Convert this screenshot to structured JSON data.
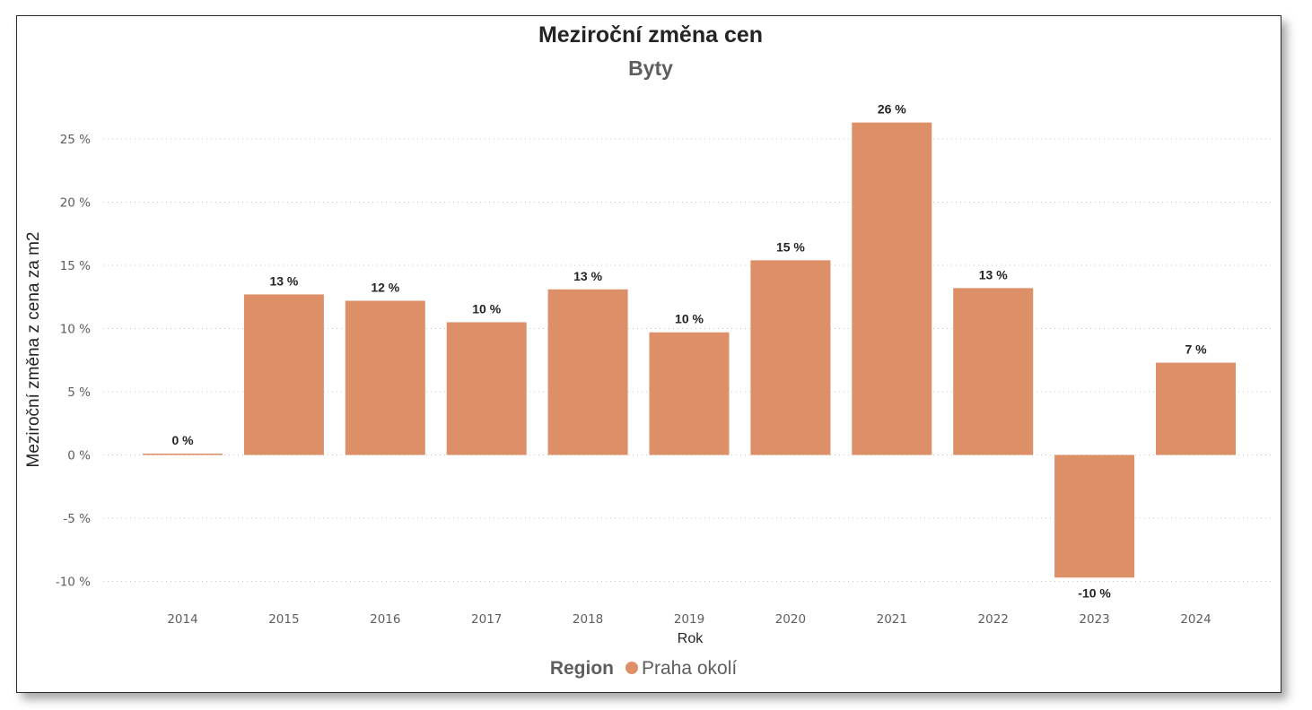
{
  "chart_data": {
    "type": "bar",
    "title": "Meziroční změna cen",
    "subtitle": "Byty",
    "xlabel": "Rok",
    "ylabel": "Meziroční změna z cena za m2",
    "categories": [
      "2014",
      "2015",
      "2016",
      "2017",
      "2018",
      "2019",
      "2020",
      "2021",
      "2022",
      "2023",
      "2024"
    ],
    "series": [
      {
        "name": "Praha okolí",
        "color": "#dd8f67",
        "values": [
          0.1,
          12.7,
          12.2,
          10.5,
          13.1,
          9.7,
          15.4,
          26.3,
          13.2,
          -9.7,
          7.3
        ],
        "labels": [
          "0 %",
          "13 %",
          "12 %",
          "10 %",
          "13 %",
          "10 %",
          "15 %",
          "26 %",
          "13 %",
          "-10 %",
          "7 %"
        ]
      }
    ],
    "ylim": [
      -11,
      28
    ],
    "yticks": [
      25,
      20,
      15,
      10,
      5,
      0,
      -5,
      -10
    ],
    "ytick_labels": [
      "25 %",
      "20 %",
      "15 %",
      "10 %",
      "5 %",
      "0 %",
      "-5 %",
      "-10 %"
    ],
    "grid": true,
    "legend": {
      "title": "Region",
      "position": "bottom-center"
    }
  }
}
